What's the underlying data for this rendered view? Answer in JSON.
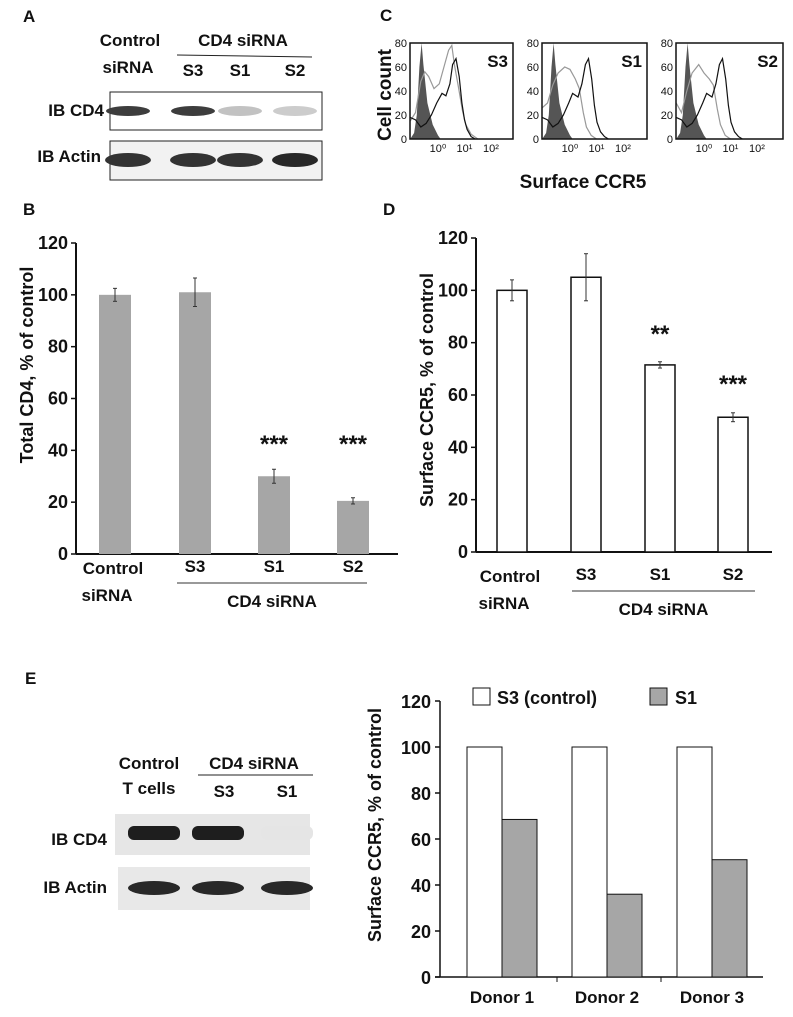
{
  "panels": {
    "A": {
      "label": "A",
      "control_line1": "Control",
      "control_line2": "siRNA",
      "group": "CD4 siRNA",
      "lanes": [
        "S3",
        "S1",
        "S2"
      ],
      "blot_rows": [
        "IB CD4",
        "IB Actin"
      ],
      "cd4_band_intensity": [
        0.85,
        0.85,
        0.2,
        0.15
      ],
      "actin_band_intensity": [
        0.9,
        0.9,
        0.9,
        0.95
      ]
    },
    "C": {
      "label": "C",
      "ylabel": "Cell count",
      "xlabel": "Surface CCR5",
      "yticks": [
        "80",
        "60",
        "40",
        "20",
        "0"
      ],
      "xticks": [
        "10⁰",
        "10¹",
        "10²"
      ]
    },
    "E_blot": {
      "label": "E",
      "control_line1": "Control",
      "control_line2": "T cells",
      "group": "CD4 siRNA",
      "lanes": [
        "S3",
        "S1"
      ],
      "blot_rows": [
        "IB CD4",
        "IB Actin"
      ],
      "cd4_band_intensity": [
        1.0,
        1.0,
        0.03
      ],
      "actin_band_intensity": [
        0.95,
        0.95,
        0.95
      ]
    }
  },
  "chart_data": [
    {
      "panel": "B",
      "label": "B",
      "type": "bar",
      "categories": [
        "Control siRNA",
        "S3",
        "S1",
        "S2"
      ],
      "cat_control_line1": "Control",
      "cat_control_line2": "siRNA",
      "group_label": "CD4 siRNA",
      "values": [
        100,
        101,
        30,
        20.5
      ],
      "errors": [
        2.5,
        5.5,
        2.7,
        1.2
      ],
      "significance": [
        "",
        "",
        "***",
        "***"
      ],
      "ylabel": "Total CD4, % of control",
      "ylim": [
        0,
        120
      ],
      "yticks": [
        0,
        20,
        40,
        60,
        80,
        100,
        120
      ],
      "bar_color": "#a6a6a6"
    },
    {
      "panel": "C",
      "type": "histogram",
      "xscale": "log",
      "ylim": [
        0,
        80
      ],
      "histograms": [
        {
          "title": "S3",
          "isotype": [
            [
              -1.05,
              0
            ],
            [
              -0.9,
              5
            ],
            [
              -0.8,
              20
            ],
            [
              -0.7,
              60
            ],
            [
              -0.62,
              80
            ],
            [
              -0.55,
              62
            ],
            [
              -0.4,
              30
            ],
            [
              -0.2,
              12
            ],
            [
              0,
              3
            ],
            [
              0.1,
              0
            ]
          ],
          "black": [
            [
              -1.05,
              18
            ],
            [
              -0.85,
              16
            ],
            [
              -0.65,
              10
            ],
            [
              -0.45,
              13
            ],
            [
              -0.25,
              20
            ],
            [
              -0.05,
              30
            ],
            [
              0.15,
              38
            ],
            [
              0.3,
              36
            ],
            [
              0.45,
              46
            ],
            [
              0.55,
              62
            ],
            [
              0.68,
              67
            ],
            [
              0.8,
              52
            ],
            [
              0.9,
              30
            ],
            [
              1.0,
              16
            ],
            [
              1.1,
              8
            ],
            [
              1.25,
              2
            ],
            [
              1.4,
              0
            ]
          ],
          "grey": [
            [
              -1.05,
              15
            ],
            [
              -0.85,
              22
            ],
            [
              -0.65,
              48
            ],
            [
              -0.5,
              56
            ],
            [
              -0.35,
              52
            ],
            [
              -0.15,
              42
            ],
            [
              0.05,
              46
            ],
            [
              0.25,
              62
            ],
            [
              0.4,
              74
            ],
            [
              0.52,
              78
            ],
            [
              0.62,
              62
            ],
            [
              0.78,
              42
            ],
            [
              0.92,
              24
            ],
            [
              1.05,
              12
            ],
            [
              1.25,
              4
            ],
            [
              1.5,
              0
            ]
          ]
        },
        {
          "title": "S1",
          "isotype": [
            [
              -1.05,
              0
            ],
            [
              -0.9,
              5
            ],
            [
              -0.8,
              20
            ],
            [
              -0.7,
              60
            ],
            [
              -0.62,
              80
            ],
            [
              -0.55,
              62
            ],
            [
              -0.4,
              30
            ],
            [
              -0.2,
              12
            ],
            [
              0,
              3
            ],
            [
              0.1,
              0
            ]
          ],
          "black": [
            [
              -1.05,
              18
            ],
            [
              -0.85,
              16
            ],
            [
              -0.65,
              10
            ],
            [
              -0.45,
              13
            ],
            [
              -0.25,
              20
            ],
            [
              -0.05,
              30
            ],
            [
              0.1,
              38
            ],
            [
              0.3,
              35
            ],
            [
              0.45,
              46
            ],
            [
              0.58,
              62
            ],
            [
              0.7,
              67
            ],
            [
              0.82,
              50
            ],
            [
              0.92,
              28
            ],
            [
              1.02,
              14
            ],
            [
              1.15,
              6
            ],
            [
              1.3,
              2
            ],
            [
              1.45,
              0
            ]
          ],
          "grey": [
            [
              -1.05,
              26
            ],
            [
              -0.85,
              30
            ],
            [
              -0.65,
              45
            ],
            [
              -0.45,
              55
            ],
            [
              -0.2,
              60
            ],
            [
              0,
              58
            ],
            [
              0.2,
              50
            ],
            [
              0.35,
              42
            ],
            [
              0.5,
              22
            ],
            [
              0.62,
              10
            ],
            [
              0.8,
              3
            ],
            [
              1.0,
              0
            ]
          ]
        },
        {
          "title": "S2",
          "isotype": [
            [
              -1.05,
              0
            ],
            [
              -0.9,
              5
            ],
            [
              -0.8,
              20
            ],
            [
              -0.7,
              60
            ],
            [
              -0.62,
              80
            ],
            [
              -0.55,
              62
            ],
            [
              -0.4,
              30
            ],
            [
              -0.2,
              12
            ],
            [
              0,
              3
            ],
            [
              0.1,
              0
            ]
          ],
          "black": [
            [
              -1.05,
              18
            ],
            [
              -0.85,
              16
            ],
            [
              -0.65,
              10
            ],
            [
              -0.45,
              13
            ],
            [
              -0.25,
              20
            ],
            [
              -0.05,
              30
            ],
            [
              0.1,
              38
            ],
            [
              0.3,
              35
            ],
            [
              0.45,
              46
            ],
            [
              0.58,
              62
            ],
            [
              0.7,
              67
            ],
            [
              0.82,
              50
            ],
            [
              0.92,
              28
            ],
            [
              1.02,
              14
            ],
            [
              1.15,
              6
            ],
            [
              1.3,
              2
            ],
            [
              1.45,
              0
            ]
          ],
          "grey": [
            [
              -1.05,
              30
            ],
            [
              -0.85,
              22
            ],
            [
              -0.65,
              40
            ],
            [
              -0.45,
              55
            ],
            [
              -0.2,
              62
            ],
            [
              0,
              55
            ],
            [
              0.2,
              50
            ],
            [
              0.35,
              45
            ],
            [
              0.5,
              25
            ],
            [
              0.62,
              12
            ],
            [
              0.8,
              3
            ],
            [
              1.0,
              0
            ]
          ]
        }
      ]
    },
    {
      "panel": "D",
      "label": "D",
      "type": "bar",
      "categories": [
        "Control siRNA",
        "S3",
        "S1",
        "S2"
      ],
      "cat_control_line1": "Control",
      "cat_control_line2": "siRNA",
      "group_label": "CD4 siRNA",
      "values": [
        100,
        105,
        71.5,
        51.5
      ],
      "errors": [
        4,
        9,
        1.2,
        1.7
      ],
      "significance": [
        "",
        "",
        "**",
        "***"
      ],
      "ylabel": "Surface CCR5, % of control",
      "ylim": [
        0,
        120
      ],
      "yticks": [
        0,
        20,
        40,
        60,
        80,
        100,
        120
      ],
      "bar_color": "#ffffff"
    },
    {
      "panel": "E",
      "type": "bar",
      "categories": [
        "Donor 1",
        "Donor 2",
        "Donor 3"
      ],
      "series": [
        {
          "name": "S3 (control)",
          "values": [
            100,
            100,
            100
          ],
          "color": "#ffffff"
        },
        {
          "name": "S1",
          "values": [
            68.5,
            36,
            51
          ],
          "color": "#a6a6a6"
        }
      ],
      "ylabel": "Surface CCR5, % of control",
      "ylim": [
        0,
        120
      ],
      "yticks": [
        0,
        20,
        40,
        60,
        80,
        100,
        120
      ],
      "legend": "top"
    }
  ]
}
